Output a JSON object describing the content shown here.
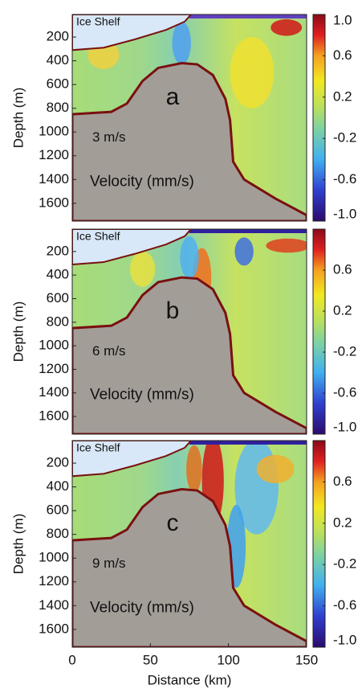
{
  "chart_data": [
    {
      "type": "contour",
      "panel_label": "a",
      "ice_label": "Ice Shelf",
      "speed": "3 m/s",
      "variable": "Velocity (mm/s)",
      "ylabel": "Depth (m)",
      "ylim": [
        10,
        1750
      ],
      "yticks": [
        200,
        400,
        600,
        800,
        1000,
        1200,
        1400,
        1600
      ],
      "xlim": [
        0,
        150
      ],
      "colorbar": {
        "lim": [
          -1.0,
          1.0
        ],
        "ticks": [
          {
            "value": 1.0,
            "label": "1.0"
          },
          0.6,
          0.2,
          -0.2,
          -0.6,
          {
            "value": -1.0,
            "label": "-1.0"
          }
        ]
      }
    },
    {
      "type": "contour",
      "panel_label": "b",
      "ice_label": "Ice Shelf",
      "speed": "6 m/s",
      "variable": "Velocity (mm/s)",
      "ylabel": "Depth (m)",
      "ylim": [
        10,
        1750
      ],
      "yticks": [
        200,
        400,
        600,
        800,
        1000,
        1200,
        1400,
        1600
      ],
      "xlim": [
        0,
        150
      ],
      "colorbar": {
        "lim": [
          -1.0,
          1.0
        ],
        "ticks": [
          0.6,
          0.2,
          -0.2,
          -0.6,
          {
            "value": -1.0,
            "label": "-1.0"
          }
        ]
      }
    },
    {
      "type": "contour",
      "panel_label": "c",
      "ice_label": "Ice Shelf",
      "speed": "9 m/s",
      "variable": "Velocity (mm/s)",
      "ylabel": "Depth (m)",
      "ylim": [
        10,
        1750
      ],
      "yticks": [
        200,
        400,
        600,
        800,
        1000,
        1200,
        1400,
        1600
      ],
      "xlim": [
        0,
        150
      ],
      "xlabel": "Distance (km)",
      "xticks": [
        0,
        50,
        100,
        150
      ],
      "colorbar": {
        "lim": [
          -1.0,
          1.0
        ],
        "ticks": [
          0.6,
          0.2,
          -0.2,
          -0.6,
          {
            "value": -1.0,
            "label": "-1.0"
          }
        ]
      }
    }
  ]
}
